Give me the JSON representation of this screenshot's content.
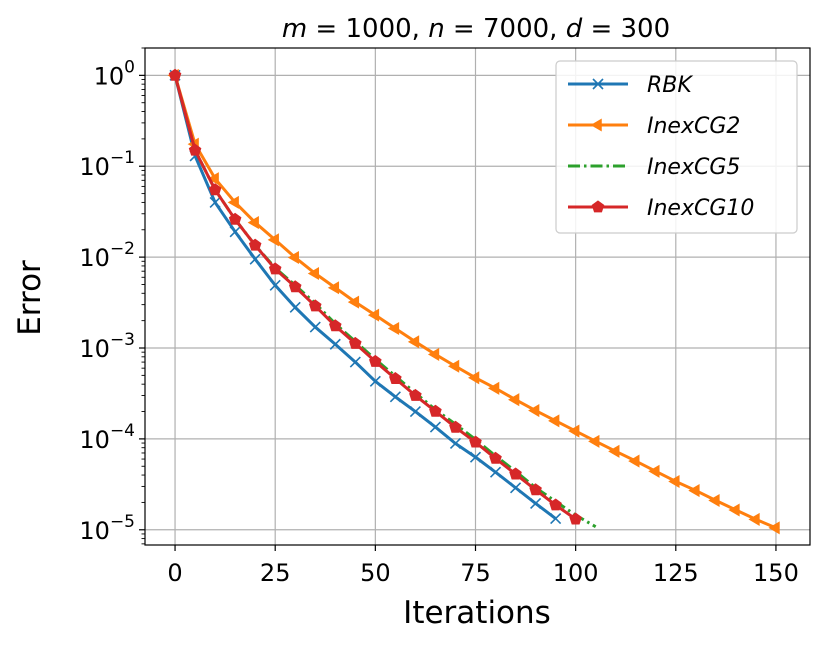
{
  "chart_data": {
    "type": "line",
    "title": "m = 1000, n = 7000, d = 300",
    "xlabel": "Iterations",
    "ylabel": "Error",
    "yscale": "log",
    "xlim": [
      -7.5,
      158.5
    ],
    "ylim": [
      6.8e-06,
      2.0
    ],
    "xticks": [
      0,
      25,
      50,
      75,
      100,
      125,
      150
    ],
    "xtick_labels": [
      "0",
      "25",
      "50",
      "75",
      "100",
      "125",
      "150"
    ],
    "yticks": [
      1,
      0.1,
      0.01,
      0.001,
      0.0001,
      1e-05
    ],
    "ytick_labels": [
      {
        "base": "10",
        "exp": "0"
      },
      {
        "base": "10",
        "exp": "−1"
      },
      {
        "base": "10",
        "exp": "−2"
      },
      {
        "base": "10",
        "exp": "−3"
      },
      {
        "base": "10",
        "exp": "−4"
      },
      {
        "base": "10",
        "exp": "−5"
      }
    ],
    "grid": true,
    "legend_position": "top-right",
    "series": [
      {
        "name": "RBK",
        "color": "#1f77b4",
        "marker": "x",
        "linestyle": "solid",
        "x": [
          0,
          5,
          10,
          15,
          20,
          25,
          30,
          35,
          40,
          45,
          50,
          55,
          60,
          65,
          70,
          75,
          80,
          85,
          90,
          95
        ],
        "y": [
          1.0,
          0.13,
          0.04,
          0.019,
          0.0095,
          0.0049,
          0.0028,
          0.0017,
          0.0011,
          0.0007,
          0.00043,
          0.00029,
          0.0002,
          0.000135,
          8.9e-05,
          6.3e-05,
          4.3e-05,
          2.9e-05,
          1.95e-05,
          1.33e-05
        ]
      },
      {
        "name": "InexCG2",
        "color": "#ff7f0e",
        "marker": "triangle-left",
        "linestyle": "solid",
        "x": [
          0,
          5,
          10,
          15,
          20,
          25,
          30,
          35,
          40,
          45,
          50,
          55,
          60,
          65,
          70,
          75,
          80,
          85,
          90,
          95,
          100,
          105,
          110,
          115,
          120,
          125,
          130,
          135,
          140,
          145,
          150
        ],
        "y": [
          1.0,
          0.175,
          0.073,
          0.04,
          0.024,
          0.0155,
          0.0099,
          0.0066,
          0.0046,
          0.0032,
          0.0023,
          0.00164,
          0.00117,
          0.00085,
          0.00063,
          0.00047,
          0.00036,
          0.00027,
          0.000205,
          0.000158,
          0.000122,
          9.4e-05,
          7.3e-05,
          5.7e-05,
          4.4e-05,
          3.4e-05,
          2.7e-05,
          2.1e-05,
          1.65e-05,
          1.3e-05,
          1.05e-05
        ]
      },
      {
        "name": "InexCG5",
        "color": "#2ca02c",
        "marker": "",
        "linestyle": "dashdot",
        "x": [
          0,
          5,
          10,
          15,
          20,
          25,
          30,
          35,
          40,
          45,
          50,
          55,
          60,
          65,
          70,
          75,
          80,
          85,
          90,
          95,
          100,
          105
        ],
        "y": [
          1.0,
          0.15,
          0.055,
          0.026,
          0.0135,
          0.0076,
          0.0049,
          0.0031,
          0.00185,
          0.00118,
          0.00075,
          0.00049,
          0.00032,
          0.00021,
          0.000145,
          9.85e-05,
          6.5e-05,
          4.4e-05,
          2.9e-05,
          2.05e-05,
          1.45e-05,
          1.08e-05
        ]
      },
      {
        "name": "InexCG10",
        "color": "#d62728",
        "marker": "pentagon",
        "linestyle": "solid",
        "x": [
          0,
          5,
          10,
          15,
          20,
          25,
          30,
          35,
          40,
          45,
          50,
          55,
          60,
          65,
          70,
          75,
          80,
          85,
          90,
          95,
          100
        ],
        "y": [
          1.0,
          0.15,
          0.055,
          0.026,
          0.0135,
          0.0074,
          0.0047,
          0.0029,
          0.00175,
          0.00112,
          0.00071,
          0.00046,
          0.0003,
          0.000201,
          0.000134,
          9.2e-05,
          6.1e-05,
          4.1e-05,
          2.75e-05,
          1.87e-05,
          1.31e-05
        ]
      }
    ]
  }
}
